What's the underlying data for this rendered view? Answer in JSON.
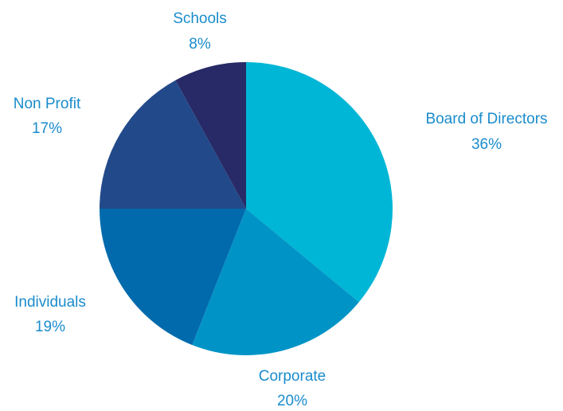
{
  "chart_data": {
    "type": "pie",
    "title": "",
    "legend": "none",
    "label_color": "#1a8ccc",
    "slices": [
      {
        "label": "Board of Directors",
        "value": 36,
        "value_label": "36%",
        "color": "#00b6d6"
      },
      {
        "label": "Corporate",
        "value": 20,
        "value_label": "20%",
        "color": "#0094c6"
      },
      {
        "label": "Individuals",
        "value": 19,
        "value_label": "19%",
        "color": "#006aac"
      },
      {
        "label": "Non Profit",
        "value": 17,
        "value_label": "17%",
        "color": "#224a8a"
      },
      {
        "label": "Schools",
        "value": 8,
        "value_label": "8%",
        "color": "#272a66"
      }
    ]
  }
}
